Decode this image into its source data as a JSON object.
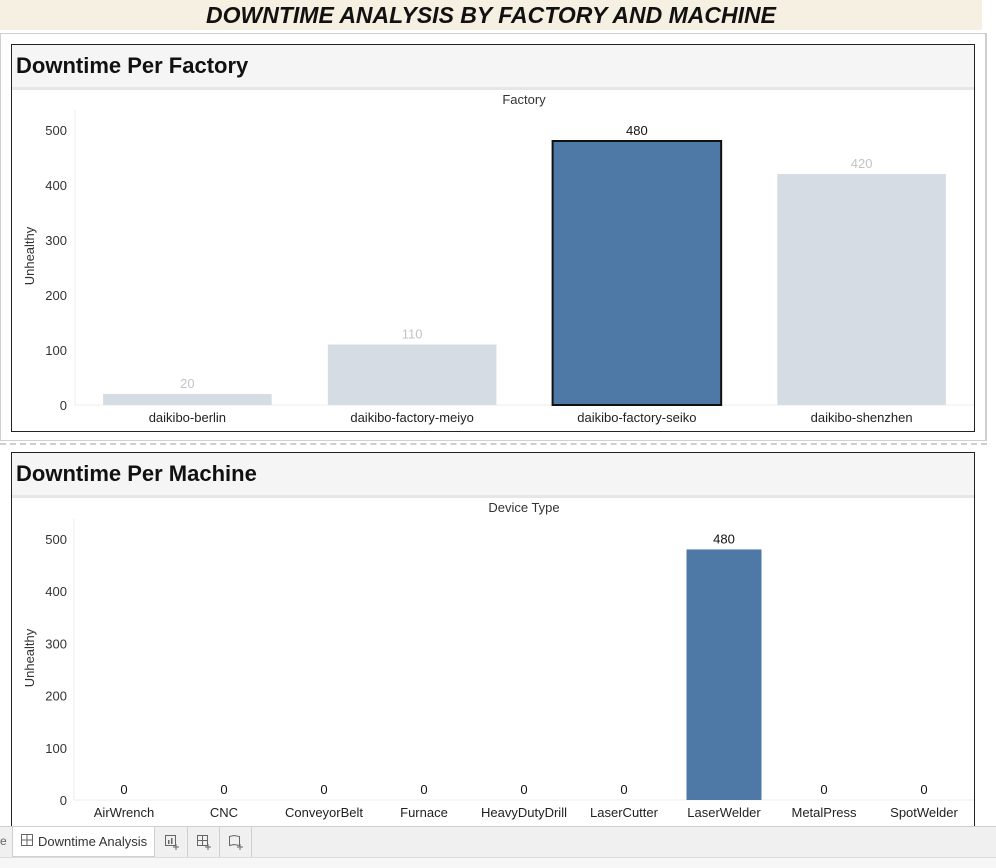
{
  "dashboard": {
    "title": "DOWNTIME ANALYSIS BY FACTORY AND MACHINE"
  },
  "colors": {
    "highlight": "#4e79a7",
    "muted": "#d5dce3",
    "muted_label": "#c0c4c8"
  },
  "chart_data": [
    {
      "type": "bar",
      "panel_title": "Downtime Per Factory",
      "title": "Factory",
      "ylabel": "Unhealthy",
      "ylim": [
        0,
        500
      ],
      "yticks": [
        0,
        100,
        200,
        300,
        400,
        500
      ],
      "categories": [
        "daikibo-berlin",
        "daikibo-factory-meiyo",
        "daikibo-factory-seiko",
        "daikibo-shenzhen"
      ],
      "values": [
        20,
        110,
        480,
        420
      ],
      "highlighted": [
        false,
        false,
        true,
        false
      ],
      "selected": [
        false,
        false,
        true,
        false
      ]
    },
    {
      "type": "bar",
      "panel_title": "Downtime Per Machine",
      "title": "Device Type",
      "ylabel": "Unhealthy",
      "ylim": [
        0,
        500
      ],
      "yticks": [
        0,
        100,
        200,
        300,
        400,
        500
      ],
      "categories": [
        "AirWrench",
        "CNC",
        "ConveyorBelt",
        "Furnace",
        "HeavyDutyDrill",
        "LaserCutter",
        "LaserWelder",
        "MetalPress",
        "SpotWelder"
      ],
      "values": [
        0,
        0,
        0,
        0,
        0,
        0,
        480,
        0,
        0
      ],
      "highlighted": [
        false,
        false,
        false,
        false,
        false,
        false,
        true,
        false,
        false
      ],
      "selected": [
        false,
        false,
        false,
        false,
        false,
        false,
        false,
        false,
        false
      ]
    }
  ],
  "tabbar": {
    "edge_text": "e",
    "active_tab": "Downtime Analysis",
    "buttons": [
      {
        "icon": "new-worksheet-icon"
      },
      {
        "icon": "new-dashboard-icon"
      },
      {
        "icon": "new-story-icon"
      }
    ]
  }
}
